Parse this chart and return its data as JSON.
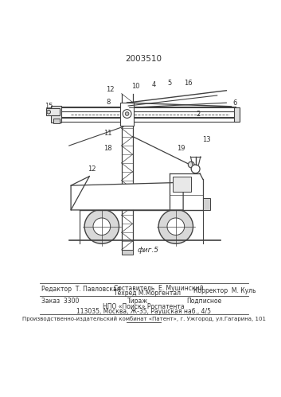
{
  "title": "2003510",
  "bg_color": "#ffffff",
  "line_color": "#404040",
  "text_color": "#303030",
  "fig_label": "фиг.5",
  "footer_line1_left": "Редактор  Т. Павловская",
  "footer_line1_c1": "Составитель  Е. Мушинский",
  "footer_line1_c2": "Техред М.Моргентал",
  "footer_line1_right": "Корректор  М. Куль",
  "footer_line2_left": "Заказ  3300",
  "footer_line2_c1": "Тираж",
  "footer_line2_c2": "Подписное",
  "footer_line3": "НПО «Поиск» Роспатента",
  "footer_line4": "113035, Москва, Ж-35, Раушская наб., 4/5",
  "footer_bottom": "Производственно-издательский комбинат «Патент», г. Ужгород, ул.Гагарина, 101"
}
